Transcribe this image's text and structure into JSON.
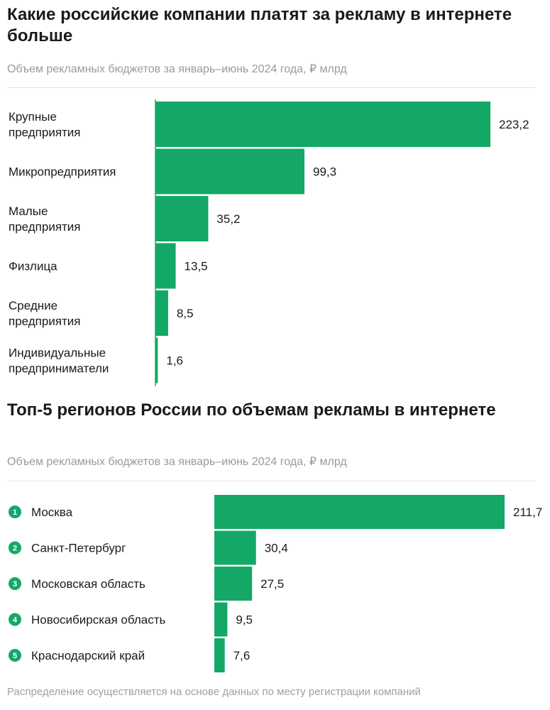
{
  "chart_data": [
    {
      "type": "bar",
      "orientation": "horizontal",
      "title": "Какие российские компании платят за рекламу в интернете больше",
      "subtitle": "Объем рекламных бюджетов за январь–июнь 2024 года, ₽ млрд",
      "categories": [
        [
          "Крупные",
          "предприятия"
        ],
        [
          "Микропредприятия"
        ],
        [
          "Малые",
          "предприятия"
        ],
        [
          "Физлица"
        ],
        [
          "Средние",
          "предприятия"
        ],
        [
          "Индивидуальные",
          "предприниматели"
        ]
      ],
      "values": [
        223.2,
        99.3,
        35.2,
        13.5,
        8.5,
        1.6
      ],
      "value_labels": [
        "223,2",
        "99,3",
        "35,2",
        "13,5",
        "8,5",
        "1,6"
      ],
      "color": "#14a866"
    },
    {
      "type": "bar",
      "orientation": "horizontal",
      "title": "Топ-5 регионов России по объемам рекламы в интернете",
      "subtitle": "Объем рекламных бюджетов за январь–июнь 2024 года, ₽ млрд",
      "categories": [
        "Москва",
        "Санкт-Петербург",
        "Московская область",
        "Новосибирская область",
        "Краснодарский край"
      ],
      "ranks": [
        "1",
        "2",
        "3",
        "4",
        "5"
      ],
      "values": [
        211.7,
        30.4,
        27.5,
        9.5,
        7.6
      ],
      "value_labels": [
        "211,7",
        "30,4",
        "27,5",
        "9,5",
        "7,6"
      ],
      "color": "#14a866"
    }
  ],
  "footnote": "Распределение осуществляется на основе данных по месту регистрации компаний"
}
